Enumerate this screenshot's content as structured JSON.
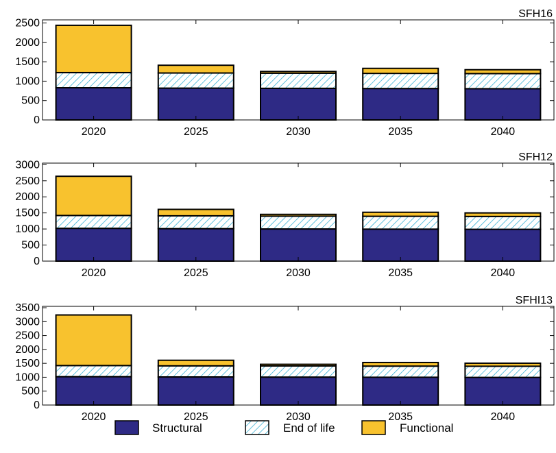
{
  "chart_data": [
    {
      "type": "bar",
      "stacked": true,
      "panel_label": "SFH16",
      "categories": [
        "2020",
        "2025",
        "2030",
        "2035",
        "2040"
      ],
      "yticks": [
        0,
        500,
        1000,
        1500,
        2000,
        2500
      ],
      "ylim": [
        0,
        2580
      ],
      "series": [
        {
          "name": "Structural",
          "values": [
            830,
            820,
            815,
            810,
            805
          ]
        },
        {
          "name": "End of life",
          "values": [
            390,
            390,
            390,
            390,
            390
          ]
        },
        {
          "name": "Functional",
          "values": [
            1220,
            200,
            45,
            130,
            100
          ]
        }
      ]
    },
    {
      "type": "bar",
      "stacked": true,
      "panel_label": "SFH12",
      "categories": [
        "2020",
        "2025",
        "2030",
        "2035",
        "2040"
      ],
      "yticks": [
        0,
        500,
        1000,
        1500,
        2000,
        2500,
        3000
      ],
      "ylim": [
        0,
        3050
      ],
      "series": [
        {
          "name": "Structural",
          "values": [
            1020,
            1010,
            1000,
            995,
            990
          ]
        },
        {
          "name": "End of life",
          "values": [
            400,
            400,
            400,
            400,
            400
          ]
        },
        {
          "name": "Functional",
          "values": [
            1220,
            200,
            55,
            125,
            110
          ]
        }
      ]
    },
    {
      "type": "bar",
      "stacked": true,
      "panel_label": "SFHI13",
      "categories": [
        "2020",
        "2025",
        "2030",
        "2035",
        "2040"
      ],
      "yticks": [
        0,
        500,
        1000,
        1500,
        2000,
        2500,
        3000,
        3500
      ],
      "ylim": [
        0,
        3550
      ],
      "series": [
        {
          "name": "Structural",
          "values": [
            1020,
            1010,
            1005,
            1000,
            995
          ]
        },
        {
          "name": "End of life",
          "values": [
            400,
            400,
            400,
            400,
            400
          ]
        },
        {
          "name": "Functional",
          "values": [
            1820,
            200,
            60,
            130,
            110
          ]
        }
      ]
    }
  ],
  "legend": {
    "placement": "bottom-center",
    "items": [
      {
        "label": "Structural",
        "pattern": "solid",
        "color": "#2e2a85"
      },
      {
        "label": "End of life",
        "pattern": "diagonal-hatch",
        "color": "#3ab0d4"
      },
      {
        "label": "Functional",
        "pattern": "solid",
        "color": "#f8c22e"
      }
    ]
  },
  "colors": {
    "structural": "#2e2a85",
    "end_of_life_hatch": "#3ab0d4",
    "functional": "#f8c22e",
    "outline": "#000000"
  },
  "grid": false
}
